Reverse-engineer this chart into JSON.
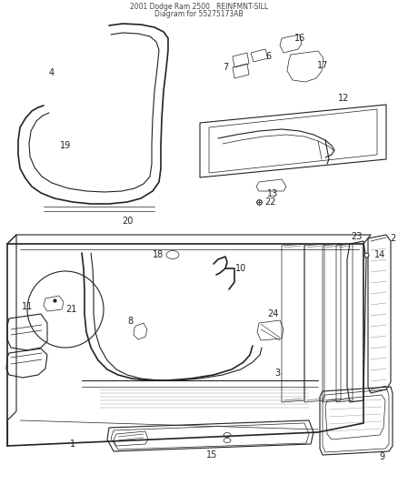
{
  "title1": "2001 Dodge Ram 2500   REINFMNT-SILL",
  "title2": "Diagram for 55275173AB",
  "bg_color": "#ffffff",
  "line_color": "#222222",
  "fig_width": 4.38,
  "fig_height": 5.33,
  "dpi": 100
}
